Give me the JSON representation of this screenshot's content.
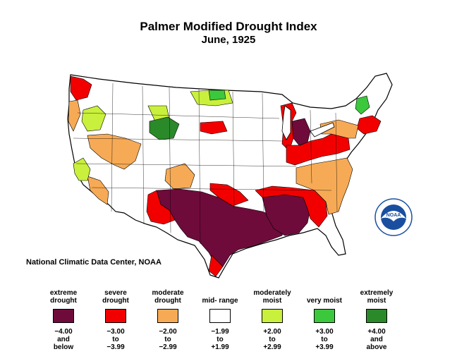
{
  "title": "Palmer Modified Drought Index",
  "subtitle": "June, 1925",
  "credit": "National Climatic Data Center, NOAA",
  "logo_text": "NOAA",
  "colors": {
    "extreme_drought": "#6e0b3a",
    "severe_drought": "#f20000",
    "moderate_drought": "#f7aa55",
    "mid_range": "#ffffff",
    "moderately_moist": "#c9f03c",
    "very_moist": "#3cc83c",
    "extremely_moist": "#2a8a2a",
    "border": "#000000",
    "noaa_blue": "#1a4fa0"
  },
  "legend": [
    {
      "label": "extreme drought",
      "range": [
        "−4.00",
        "and",
        "below"
      ],
      "color": "#6e0b3a"
    },
    {
      "label": "severe drought",
      "range": [
        "−3.00",
        "to",
        "−3.99"
      ],
      "color": "#f20000"
    },
    {
      "label": "moderate drought",
      "range": [
        "−2.00",
        "to",
        "−2.99"
      ],
      "color": "#f7aa55"
    },
    {
      "label": "mid- range",
      "range": [
        "−1.99",
        "to",
        "+1.99"
      ],
      "color": "#ffffff"
    },
    {
      "label": "moderately moist",
      "range": [
        "+2.00",
        "to",
        "+2.99"
      ],
      "color": "#c9f03c"
    },
    {
      "label": "very moist",
      "range": [
        "+3.00",
        "to",
        "+3.99"
      ],
      "color": "#3cc83c"
    },
    {
      "label": "extremely moist",
      "range": [
        "+4.00",
        "and",
        "above"
      ],
      "color": "#2a8a2a"
    }
  ],
  "map": {
    "regions": [
      {
        "name": "southern-plains",
        "category": "extreme_drought"
      },
      {
        "name": "lower-mississippi",
        "category": "extreme_drought"
      },
      {
        "name": "michigan-east",
        "category": "extreme_drought"
      },
      {
        "name": "southern-rim",
        "category": "severe_drought"
      },
      {
        "name": "washington-west",
        "category": "severe_drought"
      },
      {
        "name": "michigan-lower",
        "category": "severe_drought"
      },
      {
        "name": "ohio-valley",
        "category": "severe_drought"
      },
      {
        "name": "new-england-south",
        "category": "severe_drought"
      },
      {
        "name": "south-dakota",
        "category": "severe_drought"
      },
      {
        "name": "southeast",
        "category": "moderate_drought"
      },
      {
        "name": "great-basin",
        "category": "moderate_drought"
      },
      {
        "name": "southern-california",
        "category": "moderate_drought"
      },
      {
        "name": "oregon-coast",
        "category": "moderate_drought"
      },
      {
        "name": "central-california",
        "category": "moderately_moist"
      },
      {
        "name": "north-dakota",
        "category": "moderately_moist"
      },
      {
        "name": "vermont",
        "category": "very_moist"
      },
      {
        "name": "wyoming-northwest",
        "category": "extremely_moist"
      }
    ]
  }
}
